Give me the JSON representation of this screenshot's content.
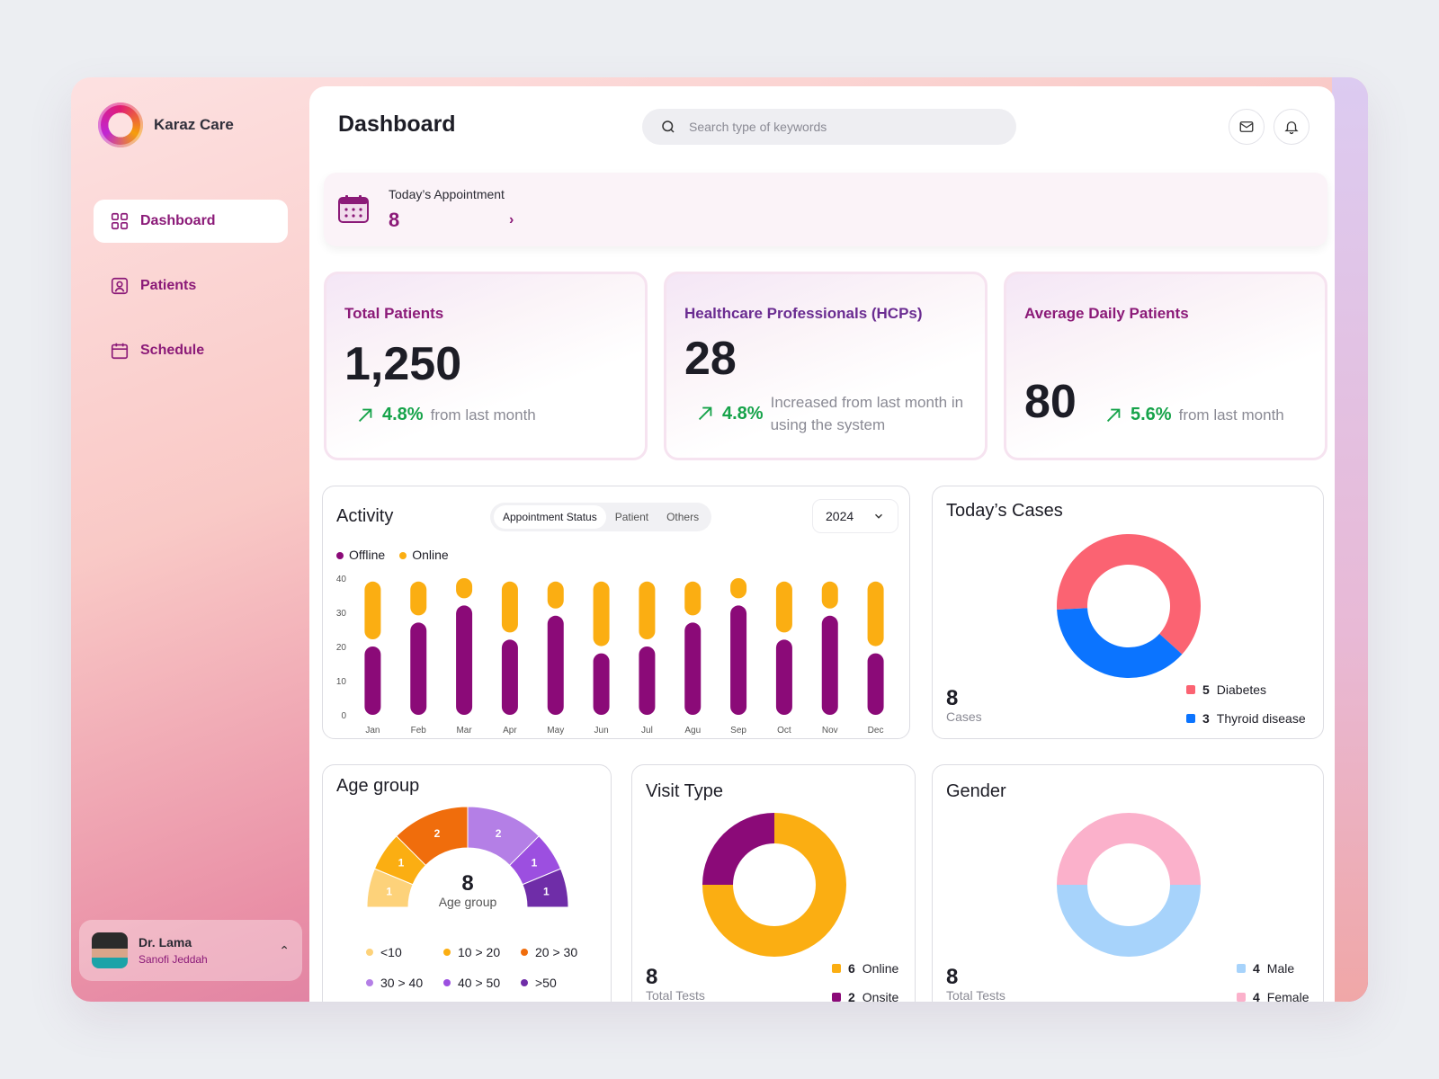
{
  "brand": {
    "name": "Karaz Care"
  },
  "sidebar": {
    "items": [
      {
        "label": "Dashboard",
        "icon": "grid-icon",
        "active": true
      },
      {
        "label": "Patients",
        "icon": "patient-icon",
        "active": false
      },
      {
        "label": "Schedule",
        "icon": "calendar-icon",
        "active": false
      }
    ],
    "user": {
      "name": "Dr. Lama",
      "org": "Sanofi Jeddah"
    }
  },
  "header": {
    "title": "Dashboard",
    "search_placeholder": "Search type of keywords"
  },
  "appointment": {
    "label": "Today’s Appointment",
    "value": "8"
  },
  "stats": [
    {
      "title": "Total Patients",
      "value": "1,250",
      "pct": "4.8%",
      "note": "from last month"
    },
    {
      "title": "Healthcare Professionals (HCPs)",
      "value": "28",
      "pct": "4.8%",
      "note": "Increased from last month in using the system"
    },
    {
      "title": "Average Daily Patients",
      "value": "80",
      "pct": "5.6%",
      "note": "from last month"
    }
  ],
  "activity": {
    "title": "Activity",
    "tabs": [
      "Appointment Status",
      "Patient",
      "Others"
    ],
    "active_tab": 0,
    "year": "2024",
    "legend": [
      {
        "name": "Offline",
        "color": "#8b0a78"
      },
      {
        "name": "Online",
        "color": "#fbae12"
      }
    ]
  },
  "chart_data": {
    "type": "bar",
    "categories": [
      "Jan",
      "Feb",
      "Mar",
      "Apr",
      "May",
      "Jun",
      "Jul",
      "Agu",
      "Sep",
      "Oct",
      "Nov",
      "Dec"
    ],
    "series": [
      {
        "name": "Offline",
        "values": [
          20,
          27,
          32,
          22,
          29,
          18,
          20,
          27,
          32,
          22,
          29,
          18
        ]
      },
      {
        "name": "Online",
        "values": [
          19,
          12,
          8,
          17,
          10,
          21,
          19,
          12,
          8,
          17,
          10,
          21
        ]
      }
    ],
    "ylim": [
      0,
      40
    ],
    "yticks": [
      0,
      10,
      20,
      30,
      40
    ],
    "stacked": true
  },
  "cases": {
    "title": "Today’s Cases",
    "total": "8",
    "total_label": "Cases",
    "items": [
      {
        "count": "5",
        "label": "Diabetes",
        "value": 5,
        "color": "#fb6372"
      },
      {
        "count": "3",
        "label": "Thyroid disease",
        "value": 3,
        "color": "#0b74ff"
      }
    ]
  },
  "age_group": {
    "title": "Age group",
    "center_value": "8",
    "center_label": "Age group",
    "segments": [
      {
        "label": "<10",
        "value": 1,
        "color": "#fdd27a"
      },
      {
        "label": "10 > 20",
        "value": 1,
        "color": "#fbae12"
      },
      {
        "label": "20 > 30",
        "value": 2,
        "color": "#f06d0c"
      },
      {
        "label": "30 > 40",
        "value": 2,
        "color": "#b47fe6"
      },
      {
        "label": "40 > 50",
        "value": 1,
        "color": "#9c4fe0"
      },
      {
        "label": ">50",
        "value": 1,
        "color": "#6f2da8"
      }
    ]
  },
  "visit_type": {
    "title": "Visit Type",
    "total": "8",
    "total_label": "Total Tests",
    "items": [
      {
        "count": "6",
        "label": "Online",
        "value": 6,
        "color": "#fbae12"
      },
      {
        "count": "2",
        "label": "Onsite",
        "value": 2,
        "color": "#8b0a78"
      }
    ]
  },
  "gender": {
    "title": "Gender",
    "total": "8",
    "total_label": "Total Tests",
    "items": [
      {
        "count": "4",
        "label": "Male",
        "value": 4,
        "color": "#a7d3fb"
      },
      {
        "count": "4",
        "label": "Female",
        "value": 4,
        "color": "#fbb1cb"
      }
    ]
  }
}
